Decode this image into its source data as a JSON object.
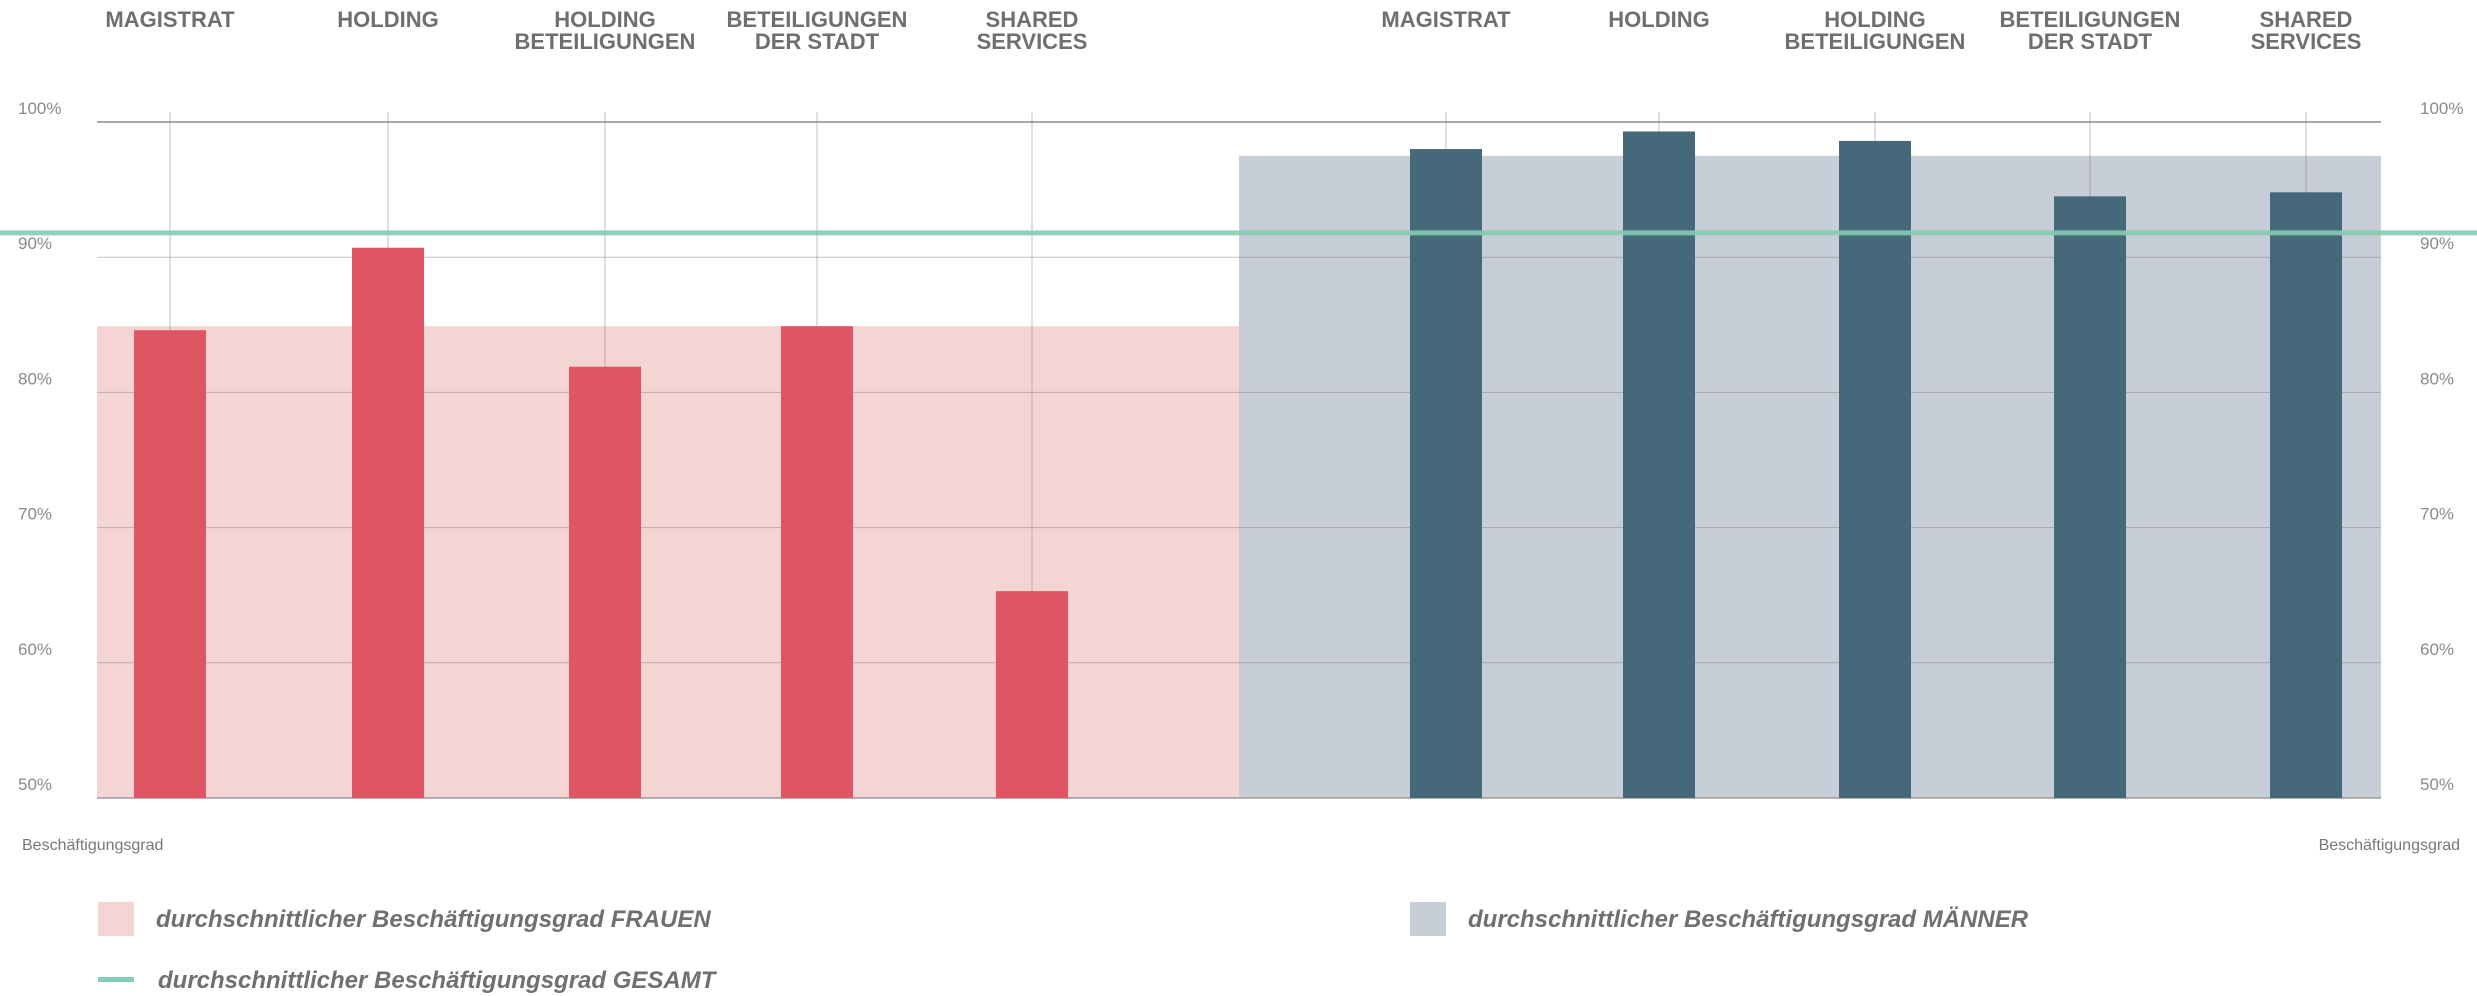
{
  "chart_data": {
    "type": "bar",
    "panels": [
      {
        "name": "durchschnittlicher Beschäftigungsgrad FRAUEN",
        "categories": [
          [
            "MAGISTRAT"
          ],
          [
            "HOLDING"
          ],
          [
            "HOLDING",
            "BETEILIGUNGEN"
          ],
          [
            "BETEILIGUNGEN",
            "DER STADT"
          ],
          [
            "SHARED",
            "SERVICES"
          ]
        ],
        "values": [
          84.6,
          90.7,
          81.9,
          84.9,
          65.3
        ],
        "average": 84.9,
        "bar_color": "#e05563",
        "band_color": "#f5d5d4"
      },
      {
        "name": "durchschnittlicher Beschäftigungsgrad MÄNNER",
        "categories": [
          [
            "MAGISTRAT"
          ],
          [
            "HOLDING"
          ],
          [
            "HOLDING",
            "BETEILIGUNGEN"
          ],
          [
            "BETEILIGUNGEN",
            "DER STADT"
          ],
          [
            "SHARED",
            "SERVICES"
          ]
        ],
        "values": [
          98.0,
          99.3,
          98.6,
          94.5,
          94.8
        ],
        "average": 97.5,
        "bar_color": "#46687b",
        "band_color": "#c8ced7"
      }
    ],
    "overall": {
      "name": "durchschnittlicher Beschäftigungsgrad GESAMT",
      "value": 91.8,
      "color": "#86cbb4"
    },
    "y_ticks": [
      "100%",
      "90%",
      "80%",
      "70%",
      "60%",
      "50%"
    ],
    "y_tick_values": [
      100,
      90,
      80,
      70,
      60,
      50
    ],
    "ylim": [
      50,
      100
    ],
    "ylabel_left": "Beschäftigungsgrad",
    "ylabel_right": "Beschäftigungsgrad",
    "grid": true,
    "legend_position": "bottom"
  }
}
